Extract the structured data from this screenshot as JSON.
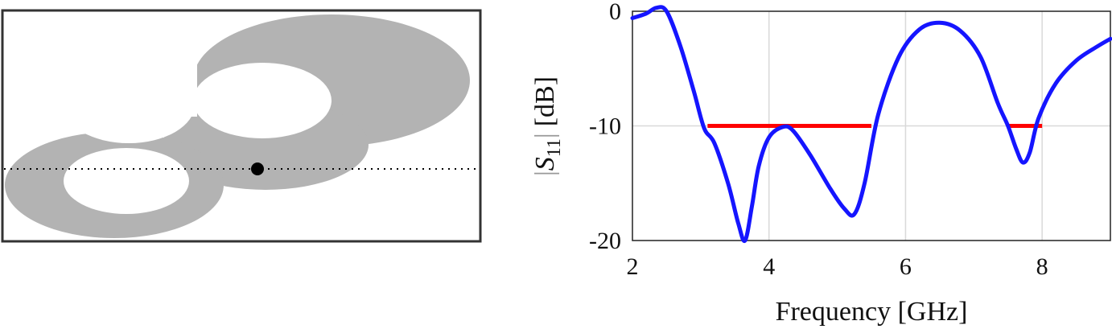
{
  "colors": {
    "shape_fill": "#b3b3b3",
    "frame": "#333333",
    "feed_marker": "#000000",
    "curve": "#1515ff",
    "band": "#ff0000",
    "grid": "#d9d9d9"
  },
  "chart_data": {
    "type": "line",
    "xlabel": "Frequency [GHz]",
    "ylabel_text": "[dB]",
    "ylabel_symbol": "S",
    "ylabel_subscript": "11",
    "xlim": [
      2,
      9
    ],
    "ylim": [
      -20,
      0
    ],
    "xticks": [
      2,
      4,
      6,
      8
    ],
    "yticks": [
      0,
      -10,
      -20
    ],
    "grid": true,
    "series": [
      {
        "role": "reflection-coefficient",
        "x": [
          2.0,
          2.2,
          2.35,
          2.5,
          2.7,
          2.9,
          3.05,
          3.2,
          3.4,
          3.55,
          3.65,
          3.75,
          3.85,
          4.0,
          4.2,
          4.35,
          4.6,
          4.9,
          5.1,
          5.25,
          5.4,
          5.6,
          5.9,
          6.2,
          6.5,
          6.8,
          7.1,
          7.35,
          7.5,
          7.62,
          7.72,
          7.82,
          7.95,
          8.2,
          8.5,
          8.8,
          9.0
        ],
        "y": [
          -0.6,
          -0.2,
          0.3,
          0.0,
          -3.0,
          -7.0,
          -10.2,
          -11.5,
          -15.0,
          -18.5,
          -20.0,
          -17.0,
          -13.5,
          -11.0,
          -10.1,
          -10.4,
          -12.5,
          -15.5,
          -17.2,
          -17.7,
          -15.0,
          -9.0,
          -4.0,
          -1.6,
          -1.0,
          -1.7,
          -4.0,
          -8.0,
          -10.0,
          -12.0,
          -13.2,
          -12.3,
          -9.3,
          -6.3,
          -4.3,
          -3.1,
          -2.4
        ]
      }
    ],
    "bands": [
      {
        "x": [
          3.1,
          5.5
        ],
        "y": -10
      },
      {
        "x": [
          7.5,
          8.0
        ],
        "y": -10
      }
    ]
  }
}
